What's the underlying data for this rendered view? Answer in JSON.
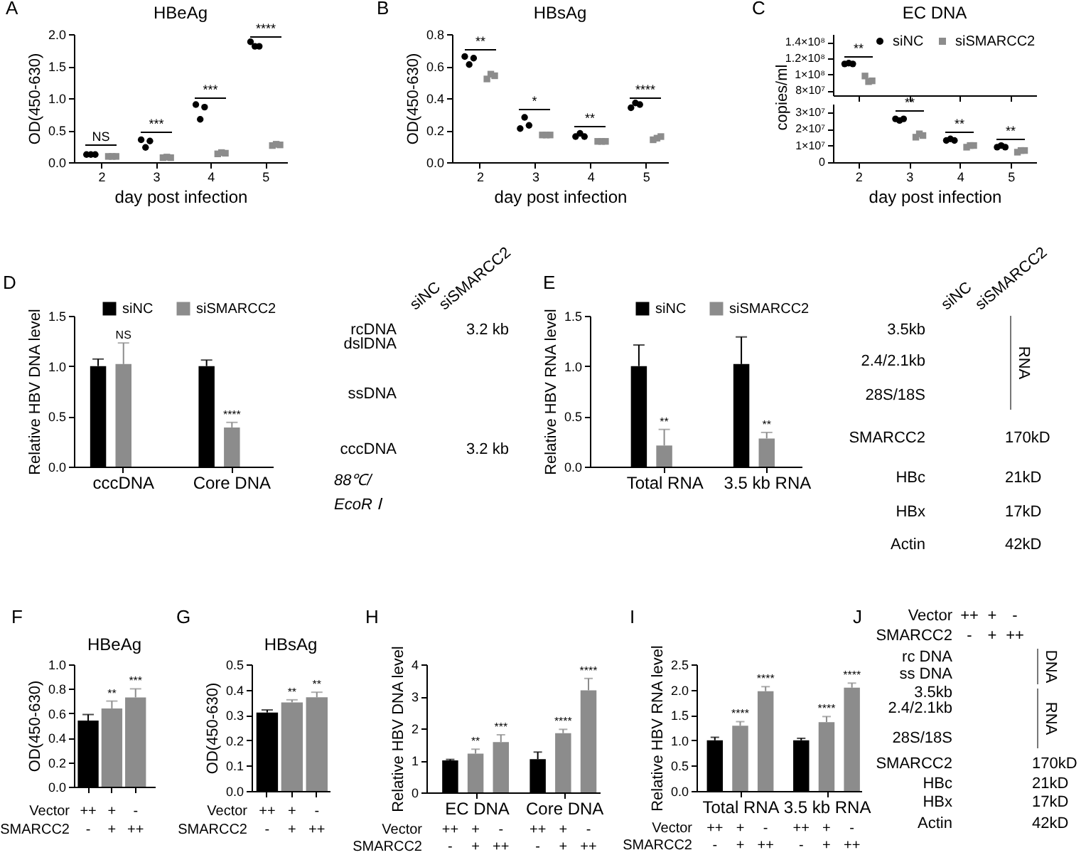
{
  "chart_data": [
    {
      "type": "scatter",
      "title": "HBeAg",
      "xlabel": "day post infection",
      "ylabel": "OD(450-630)",
      "xlim": [
        1.5,
        5.4
      ],
      "xticks": [
        2,
        3,
        4,
        5
      ],
      "ylim": [
        0,
        2
      ],
      "yticks": [
        {
          "value": 0,
          "label": "0.0"
        },
        0.5,
        {
          "value": 1,
          "label": "1.0"
        },
        1.5,
        {
          "value": 2,
          "label": "2.0"
        }
      ],
      "series": [
        {
          "color": "#000000",
          "marker": "circle",
          "x": [
            1.73,
            1.81,
            1.89,
            2.73,
            2.81,
            2.89,
            3.73,
            3.81,
            3.89,
            4.73,
            4.81,
            4.89
          ],
          "values": [
            0.12,
            0.12,
            0.12,
            0.35,
            0.23,
            0.33,
            0.9,
            0.67,
            0.86,
            1.88,
            1.81,
            1.81
          ]
        },
        {
          "color": "#8c8c8c",
          "marker": "square",
          "x": [
            2.13,
            2.2,
            2.27,
            3.13,
            3.2,
            3.27,
            4.13,
            4.2,
            4.27,
            5.13,
            5.2,
            5.27
          ],
          "values": [
            0.09,
            0.09,
            0.09,
            0.07,
            0.08,
            0.07,
            0.13,
            0.15,
            0.14,
            0.26,
            0.28,
            0.27
          ]
        }
      ],
      "annotations": [
        "A",
        "NS",
        "***",
        "***",
        "****"
      ]
    },
    {
      "type": "scatter",
      "title": "HBsAg",
      "xlabel": "day post infection",
      "ylabel": "OD(450-630)",
      "xlim": [
        1.5,
        5.4
      ],
      "xticks": [
        2,
        3,
        4,
        5
      ],
      "ylim": [
        0,
        0.8
      ],
      "yticks": [
        {
          "value": 0,
          "label": "0.0"
        },
        0.2,
        0.4,
        0.6,
        0.8
      ],
      "series": [
        {
          "color": "#000000",
          "marker": "circle",
          "x": [
            1.73,
            1.81,
            1.89,
            2.73,
            2.81,
            2.89,
            3.73,
            3.81,
            3.89,
            4.73,
            4.81,
            4.89
          ],
          "values": [
            0.66,
            0.61,
            0.65,
            0.21,
            0.28,
            0.23,
            0.16,
            0.18,
            0.16,
            0.34,
            0.37,
            0.36
          ]
        },
        {
          "color": "#8c8c8c",
          "marker": "square",
          "x": [
            2.13,
            2.2,
            2.27,
            3.13,
            3.2,
            3.27,
            4.13,
            4.2,
            4.27,
            5.13,
            5.2,
            5.27
          ],
          "values": [
            0.52,
            0.55,
            0.54,
            0.17,
            0.17,
            0.17,
            0.13,
            0.13,
            0.13,
            0.14,
            0.15,
            0.16
          ]
        }
      ],
      "annotations": [
        "B",
        "**",
        "*",
        "**",
        "****"
      ]
    },
    {
      "type": "scatter",
      "title": "EC DNA",
      "tick_labels": "y",
      "xlim": [
        1.5,
        5.5
      ],
      "xticks": [
        {
          "value": 2,
          "label": null
        },
        {
          "value": 3,
          "label": null
        },
        {
          "value": 4,
          "label": null
        },
        {
          "value": 5,
          "label": null
        }
      ],
      "ylim": [
        74000000,
        150000000
      ],
      "yticks": [
        {
          "value": 80000000,
          "label": "8×10⁷"
        },
        {
          "value": 100000000,
          "label": "1×10⁸"
        },
        {
          "value": 120000000,
          "label": "1.2×10⁸"
        },
        {
          "value": 140000000,
          "label": "1.4×10⁸"
        }
      ],
      "legend": "top right",
      "series": [
        {
          "name": "siNC",
          "color": "#000000",
          "marker": "circle",
          "x": [
            1.73,
            1.81,
            1.89
          ],
          "values": [
            113000000,
            114000000,
            113000000
          ]
        },
        {
          "name": "siSMARCC2",
          "color": "#8c8c8c",
          "marker": "square",
          "x": [
            2.13,
            2.2,
            2.27
          ],
          "values": [
            98000000,
            91000000,
            92000000
          ]
        }
      ],
      "annotations": [
        "C",
        "**"
      ]
    },
    {
      "type": "scatter",
      "xlabel": "day post infection",
      "ylabel": "copies/ml",
      "xlim": [
        1.5,
        5.5
      ],
      "xticks": [
        2,
        3,
        4,
        5
      ],
      "ylim": [
        0,
        35000000
      ],
      "yticks": [
        0,
        {
          "value": 10000000,
          "label": "1×10⁷"
        },
        {
          "value": 20000000,
          "label": "2×10⁷"
        },
        {
          "value": 30000000,
          "label": "3×10⁷"
        }
      ],
      "series": [
        {
          "color": "#000000",
          "marker": "circle",
          "x": [
            2.73,
            2.81,
            2.89,
            3.73,
            3.81,
            3.89,
            4.73,
            4.81,
            4.89
          ],
          "values": [
            26000000,
            25000000,
            26000000,
            13000000,
            14000000,
            13000000,
            9000000,
            10000000,
            9000000
          ]
        },
        {
          "color": "#8c8c8c",
          "marker": "square",
          "x": [
            3.13,
            3.2,
            3.27,
            4.13,
            4.2,
            4.27,
            5.13,
            5.2,
            5.27
          ],
          "values": [
            15000000,
            17000000,
            16000000,
            9000000,
            10000000,
            10000000,
            6000000,
            7000000,
            7000000
          ]
        }
      ],
      "annotations": [
        "**",
        "**",
        "**"
      ]
    },
    {
      "type": "bar",
      "ylabel": "Relative HBV DNA level",
      "categories": [
        "cccDNA",
        "Core DNA"
      ],
      "ylim": [
        0,
        1.5
      ],
      "yticks": [
        {
          "value": 0,
          "label": "0.0"
        },
        0.5,
        {
          "value": 1,
          "label": "1.0"
        },
        1.5
      ],
      "legend": "top",
      "series": [
        {
          "name": "siNC",
          "color": "#000000",
          "values": [
            1.0,
            1.0
          ],
          "errors": [
            [
              1.0,
              1.07
            ],
            [
              1.0,
              1.06
            ]
          ]
        },
        {
          "name": "siSMARCC2",
          "color": "#8c8c8c",
          "values": [
            1.02,
            0.39
          ],
          "errors": [
            [
              1.02,
              1.23
            ],
            [
              0.39,
              0.44
            ]
          ],
          "value_labels": [
            "NS",
            "****"
          ]
        }
      ],
      "annotations": [
        "D"
      ]
    },
    {
      "type": "other",
      "categories": [
        "siNC",
        "siSMARCC2"
      ],
      "y_categories": [
        "rcDNA",
        "dslDNA",
        "ssDNA",
        "cccDNA"
      ],
      "y2_categories": [
        "3.2 kb",
        null,
        null,
        "3.2 kb"
      ],
      "annotations": [
        "88℃/",
        "EcoR Ⅰ"
      ]
    },
    {
      "type": "bar",
      "ylabel": "Relative HBV RNA level",
      "categories": [
        "Total RNA",
        "3.5 kb RNA"
      ],
      "ylim": [
        0,
        1.5
      ],
      "yticks": [
        {
          "value": 0,
          "label": "0.0"
        },
        0.5,
        {
          "value": 1,
          "label": "1.0"
        },
        1.5
      ],
      "legend": "top",
      "series": [
        {
          "name": "siNC",
          "color": "#000000",
          "values": [
            1.0,
            1.02
          ],
          "errors": [
            [
              1.0,
              1.21
            ],
            [
              1.02,
              1.29
            ]
          ]
        },
        {
          "name": "siSMARCC2",
          "color": "#8c8c8c",
          "values": [
            0.21,
            0.28
          ],
          "errors": [
            [
              0.21,
              0.37
            ],
            [
              0.28,
              0.34
            ]
          ],
          "value_labels": [
            "**",
            "**"
          ]
        }
      ],
      "annotations": [
        "E"
      ]
    },
    {
      "type": "other",
      "categories": [
        "siNC",
        "siSMARCC2"
      ],
      "y_categories": [
        "3.5kb",
        "2.4/2.1kb",
        "28S/18S",
        "SMARCC2",
        "HBc",
        "HBx",
        "Actin"
      ],
      "y2_categories": [
        null,
        null,
        null,
        "170kD",
        "21kD",
        "17kD",
        "42kD"
      ],
      "annotations": [
        "RNA"
      ]
    },
    {
      "type": "bar",
      "title": "HBeAg",
      "ylabel": "OD(450-630)",
      "categories": [
        null,
        null,
        null
      ],
      "values": [
        0.54,
        0.64,
        0.73
      ],
      "colors": [
        "#000000",
        "#8c8c8c",
        "#8c8c8c"
      ],
      "errors": [
        [
          0.54,
          0.59
        ],
        [
          0.64,
          0.7
        ],
        [
          0.73,
          0.8
        ]
      ],
      "value_labels": [
        null,
        "**",
        "***"
      ],
      "ylim": [
        0,
        1
      ],
      "yticks": [
        {
          "value": 0,
          "label": "0.0"
        },
        0.2,
        0.4,
        0.6,
        0.8,
        {
          "value": 1,
          "label": "1.0"
        }
      ],
      "annotations": [
        "F",
        "Vector",
        "++",
        "+",
        "-",
        "SMARCC2",
        "-",
        "+",
        "++"
      ]
    },
    {
      "type": "bar",
      "title": "HBsAg",
      "ylabel": "OD(450-630)",
      "categories": [
        null,
        null,
        null
      ],
      "values": [
        0.31,
        0.35,
        0.37
      ],
      "colors": [
        "#000000",
        "#8c8c8c",
        "#8c8c8c"
      ],
      "errors": [
        [
          0.31,
          0.32
        ],
        [
          0.35,
          0.36
        ],
        [
          0.37,
          0.39
        ]
      ],
      "value_labels": [
        null,
        "**",
        "**"
      ],
      "ylim": [
        0,
        0.5
      ],
      "yticks": [
        {
          "value": 0,
          "label": "0.0"
        },
        0.1,
        0.2,
        0.3,
        0.4,
        0.5
      ],
      "annotations": [
        "G",
        "Vector",
        "++",
        "+",
        "-",
        "SMARCC2",
        "-",
        "+",
        "++"
      ]
    },
    {
      "type": "bar",
      "ylabel": "Relative HBV DNA level",
      "categories": [
        "EC DNA",
        "Core DNA"
      ],
      "ylim": [
        0,
        4
      ],
      "yticks": [
        0,
        1,
        2,
        3,
        4
      ],
      "series": [
        {
          "color": "#000000",
          "values": [
            1.0,
            1.04
          ],
          "errors": [
            [
              1.0,
              1.03
            ],
            [
              1.04,
              1.26
            ]
          ]
        },
        {
          "color": "#8c8c8c",
          "values": [
            1.21,
            1.85
          ],
          "errors": [
            [
              1.21,
              1.35
            ],
            [
              1.85,
              1.97
            ]
          ],
          "value_labels": [
            "**",
            "****"
          ]
        },
        {
          "color": "#8c8c8c",
          "values": [
            1.57,
            3.19
          ],
          "errors": [
            [
              1.57,
              1.8
            ],
            [
              3.19,
              3.56
            ]
          ],
          "value_labels": [
            "***",
            "****"
          ]
        }
      ],
      "annotations": [
        "H",
        "Vector",
        "++",
        "+",
        "-",
        "++",
        "+",
        "-",
        "SMARCC2",
        "-",
        "+",
        "++",
        "-",
        "+",
        "++"
      ]
    },
    {
      "type": "bar",
      "ylabel": "Relative HBV RNA level",
      "categories": [
        "Total RNA",
        "3.5 kb RNA"
      ],
      "ylim": [
        0,
        2.5
      ],
      "yticks": [
        {
          "value": 0,
          "label": "0.0"
        },
        0.5,
        {
          "value": 1,
          "label": "1.0"
        },
        1.5,
        {
          "value": 2,
          "label": "2.0"
        },
        2.5
      ],
      "series": [
        {
          "color": "#000000",
          "values": [
            1.0,
            1.0
          ],
          "errors": [
            [
              1.0,
              1.06
            ],
            [
              1.0,
              1.04
            ]
          ]
        },
        {
          "color": "#8c8c8c",
          "values": [
            1.29,
            1.36
          ],
          "errors": [
            [
              1.29,
              1.37
            ],
            [
              1.36,
              1.47
            ]
          ],
          "value_labels": [
            "****",
            "****"
          ]
        },
        {
          "color": "#8c8c8c",
          "values": [
            1.97,
            2.04
          ],
          "errors": [
            [
              1.97,
              2.06
            ],
            [
              2.04,
              2.13
            ]
          ],
          "value_labels": [
            "****",
            "****"
          ]
        }
      ],
      "annotations": [
        "I",
        "Vector",
        "++",
        "+",
        "-",
        "++",
        "+",
        "-",
        "SMARCC2",
        "-",
        "+",
        "++",
        "-",
        "+",
        "++"
      ]
    },
    {
      "type": "other",
      "categories": [
        null,
        null,
        null
      ],
      "y_categories": [
        "rc DNA",
        "ss DNA",
        "3.5kb",
        "2.4/2.1kb",
        "28S/18S",
        "SMARCC2",
        "HBc",
        "HBx",
        "Actin"
      ],
      "y2_categories": [
        null,
        null,
        null,
        null,
        null,
        "170kD",
        "21kD",
        "17kD",
        "42kD"
      ],
      "annotations": [
        "J",
        "Vector",
        "++",
        "+",
        "-",
        "SMARCC2",
        "-",
        "+",
        "++",
        "DNA",
        "RNA"
      ]
    }
  ]
}
